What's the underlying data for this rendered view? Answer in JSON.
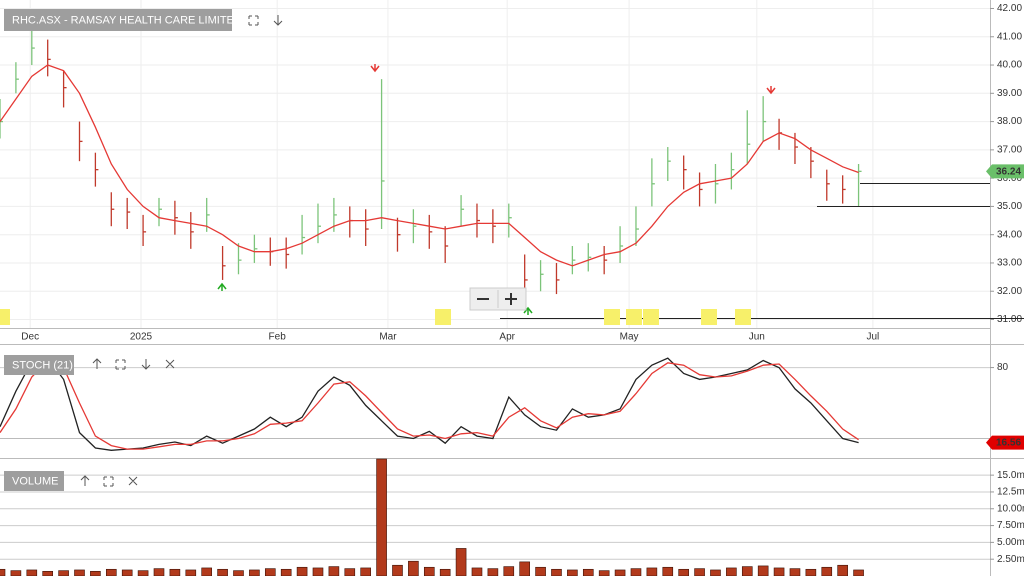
{
  "chart_data": [
    {
      "type": "ohlc",
      "title": "RHC.ASX - RAMSAY HEALTH CARE LIMITED",
      "x": [
        0,
        3,
        6,
        9,
        12,
        15,
        18,
        21,
        24,
        27,
        30,
        33,
        36,
        39,
        42,
        45,
        48,
        51,
        54,
        57,
        60,
        63,
        66,
        69,
        72,
        75,
        78,
        81,
        84,
        87,
        90,
        93,
        96,
        99,
        102,
        105,
        108,
        111,
        114,
        117,
        120,
        123,
        126,
        129,
        132,
        135,
        138,
        141,
        144,
        147,
        150,
        153,
        156,
        159,
        162
      ],
      "high": [
        38.8,
        40.1,
        41.3,
        40.9,
        39.8,
        38.0,
        36.9,
        35.5,
        35.3,
        34.7,
        35.3,
        35.2,
        34.8,
        35.3,
        33.6,
        33.7,
        34.0,
        33.9,
        33.9,
        34.7,
        35.1,
        35.3,
        35.0,
        34.9,
        39.5,
        34.6,
        34.9,
        34.7,
        34.3,
        35.4,
        35.1,
        34.9,
        35.1,
        33.3,
        33.1,
        33.0,
        33.6,
        33.7,
        33.6,
        34.3,
        35.0,
        36.7,
        37.1,
        36.8,
        36.2,
        36.5,
        36.9,
        38.4,
        38.9,
        38.1,
        37.6,
        37.1,
        36.3,
        36.1,
        36.5
      ],
      "low": [
        37.4,
        39.0,
        40.0,
        39.6,
        38.5,
        36.6,
        35.7,
        34.3,
        34.2,
        33.6,
        34.3,
        34.0,
        33.5,
        34.1,
        32.4,
        32.6,
        33.0,
        32.9,
        32.8,
        33.3,
        33.7,
        34.1,
        33.9,
        33.6,
        34.2,
        33.4,
        33.7,
        33.5,
        33.0,
        34.3,
        33.9,
        33.7,
        33.9,
        31.9,
        32.0,
        31.9,
        32.6,
        32.7,
        32.6,
        33.0,
        33.6,
        35.0,
        35.9,
        35.6,
        35.0,
        35.1,
        35.6,
        36.5,
        37.3,
        37.0,
        36.5,
        36.0,
        35.2,
        35.1,
        35.0
      ],
      "close": [
        38.0,
        39.5,
        40.6,
        40.2,
        39.2,
        37.3,
        36.3,
        34.9,
        34.8,
        34.1,
        34.9,
        34.6,
        34.1,
        34.7,
        32.9,
        33.1,
        33.5,
        33.4,
        33.3,
        33.9,
        34.3,
        34.7,
        34.5,
        34.2,
        35.9,
        34.0,
        34.3,
        34.1,
        33.6,
        34.9,
        34.5,
        34.3,
        34.6,
        32.4,
        32.6,
        32.4,
        33.1,
        33.2,
        33.1,
        33.6,
        34.2,
        35.8,
        36.6,
        36.3,
        35.6,
        35.8,
        36.3,
        37.2,
        38.0,
        37.6,
        37.1,
        36.6,
        35.8,
        35.6,
        36.24
      ],
      "up_color": "#7cc47a",
      "down_color": "#c0392b",
      "ma": {
        "color": "#e53935",
        "values": [
          38.0,
          38.8,
          39.6,
          40.0,
          39.8,
          39.0,
          37.8,
          36.5,
          35.6,
          35.0,
          34.6,
          34.5,
          34.4,
          34.3,
          34.0,
          33.6,
          33.4,
          33.4,
          33.5,
          33.7,
          34.0,
          34.3,
          34.5,
          34.5,
          34.6,
          34.5,
          34.4,
          34.3,
          34.2,
          34.3,
          34.4,
          34.4,
          34.4,
          33.9,
          33.4,
          33.1,
          32.9,
          33.1,
          33.3,
          33.4,
          33.7,
          34.3,
          35.0,
          35.5,
          35.8,
          35.9,
          36.0,
          36.5,
          37.3,
          37.6,
          37.4,
          37.0,
          36.7,
          36.4,
          36.2
        ]
      },
      "badge_color": "#6abf69",
      "xlim": [
        0,
        186.8
      ],
      "xticks": [
        {
          "value": 5.7,
          "label": "Dec"
        },
        {
          "value": 26.6,
          "label": "2025"
        },
        {
          "value": 52.3,
          "label": "Feb"
        },
        {
          "value": 73.2,
          "label": "Mar"
        },
        {
          "value": 95.7,
          "label": "Apr"
        },
        {
          "value": 118.7,
          "label": "May"
        },
        {
          "value": 142.8,
          "label": "Jun"
        },
        {
          "value": 164.7,
          "label": "Jul"
        }
      ],
      "ylim": [
        30.7,
        42.3
      ],
      "yticks": [
        {
          "value": 31,
          "label": "31.00"
        },
        {
          "value": 32,
          "label": "32.00"
        },
        {
          "value": 33,
          "label": "33.00"
        },
        {
          "value": 34,
          "label": "34.00"
        },
        {
          "value": 35,
          "label": "35.00"
        },
        {
          "value": 36,
          "label": "36.00"
        },
        {
          "value": 37,
          "label": "37.00"
        },
        {
          "value": 38,
          "label": "38.00"
        },
        {
          "value": 39,
          "label": "39.00"
        },
        {
          "value": 40,
          "label": "40.00"
        },
        {
          "value": 41,
          "label": "41.00"
        },
        {
          "value": 42,
          "label": "42.00"
        }
      ],
      "grid": true
    },
    {
      "type": "line",
      "title": "STOCH (21)",
      "x": [
        0,
        3,
        6,
        9,
        12,
        15,
        18,
        21,
        24,
        27,
        30,
        33,
        36,
        39,
        42,
        45,
        48,
        51,
        54,
        57,
        60,
        63,
        66,
        69,
        72,
        75,
        78,
        81,
        84,
        87,
        90,
        93,
        96,
        99,
        102,
        105,
        108,
        111,
        114,
        117,
        120,
        123,
        126,
        129,
        132,
        135,
        138,
        141,
        144,
        147,
        150,
        153,
        156,
        159,
        162
      ],
      "series": [
        {
          "color": "#222222",
          "values": [
            30,
            60,
            85,
            88,
            70,
            25,
            12,
            10,
            11,
            12,
            15,
            17,
            14,
            22,
            16,
            22,
            28,
            38,
            30,
            38,
            60,
            72,
            65,
            48,
            35,
            22,
            20,
            26,
            16,
            30,
            22,
            20,
            55,
            40,
            30,
            27,
            45,
            38,
            40,
            45,
            70,
            82,
            88,
            75,
            70,
            72,
            75,
            78,
            86,
            80,
            62,
            50,
            35,
            20,
            16.56
          ]
        },
        {
          "color": "#e53935",
          "values": [
            25,
            45,
            72,
            86,
            80,
            50,
            22,
            14,
            11,
            11,
            13,
            15,
            15,
            18,
            18,
            20,
            24,
            32,
            33,
            35,
            50,
            66,
            68,
            56,
            42,
            28,
            22,
            23,
            20,
            24,
            25,
            22,
            38,
            46,
            35,
            29,
            38,
            41,
            40,
            43,
            58,
            75,
            84,
            82,
            74,
            72,
            73,
            77,
            82,
            83,
            70,
            56,
            43,
            28,
            19
          ]
        }
      ],
      "badge_color": "#e00000",
      "xlim": [
        0,
        186.8
      ],
      "ylim": [
        3.5,
        99.1
      ],
      "yticks": [
        80
      ],
      "ref_lines": [
        20
      ]
    },
    {
      "type": "bar",
      "title": "VOLUME",
      "x": [
        0,
        3,
        6,
        9,
        12,
        15,
        18,
        21,
        24,
        27,
        30,
        33,
        36,
        39,
        42,
        45,
        48,
        51,
        54,
        57,
        60,
        63,
        66,
        69,
        72,
        75,
        78,
        81,
        84,
        87,
        90,
        93,
        96,
        99,
        102,
        105,
        108,
        111,
        114,
        117,
        120,
        123,
        126,
        129,
        132,
        135,
        138,
        141,
        144,
        147,
        150,
        153,
        156,
        159,
        162
      ],
      "values": [
        1.0,
        0.8,
        0.9,
        0.7,
        0.8,
        0.9,
        0.7,
        1.0,
        0.9,
        0.8,
        1.1,
        1.0,
        0.9,
        1.2,
        1.0,
        0.8,
        0.9,
        1.1,
        1.0,
        1.3,
        1.2,
        1.4,
        1.1,
        1.2,
        17.5,
        1.6,
        2.2,
        1.3,
        1.0,
        4.1,
        1.2,
        1.1,
        1.4,
        2.1,
        1.3,
        1.0,
        0.9,
        1.0,
        0.8,
        0.9,
        1.1,
        1.2,
        1.3,
        1.0,
        1.1,
        0.9,
        1.2,
        1.4,
        1.5,
        1.2,
        1.1,
        1.0,
        1.3,
        1.6,
        0.9
      ],
      "color": "#b23a1c",
      "xlim": [
        0,
        186.8
      ],
      "ylim": [
        0,
        17.4
      ],
      "yticks": [
        {
          "value": 2.5,
          "label": "2.50m"
        },
        {
          "value": 5,
          "label": "5.00m"
        },
        {
          "value": 7.5,
          "label": "7.50m"
        },
        {
          "value": 10,
          "label": "10.00m"
        },
        {
          "value": 12.5,
          "label": "12.5m"
        },
        {
          "value": 15,
          "label": "15.0m"
        }
      ]
    }
  ]
}
